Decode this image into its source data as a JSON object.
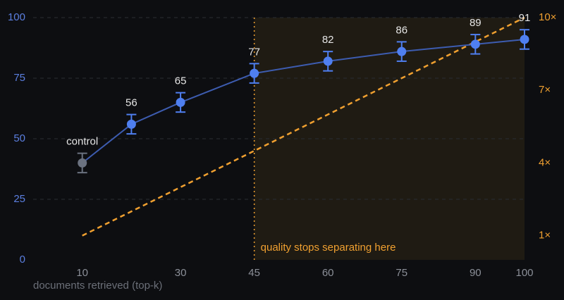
{
  "chart_data": {
    "type": "line",
    "x_label": "documents retrieved (top-k)",
    "xlim": [
      0,
      100
    ],
    "xticks": [
      10,
      30,
      45,
      60,
      75,
      90,
      100
    ],
    "ylim": [
      0,
      100
    ],
    "yticks": [
      0,
      25,
      50,
      75,
      100
    ],
    "y2lim": [
      0,
      10
    ],
    "y2ticks": [
      {
        "value": 1,
        "label": "1×"
      },
      {
        "value": 4,
        "label": "4×"
      },
      {
        "value": 7,
        "label": "7×"
      },
      {
        "value": 10,
        "label": "10×"
      }
    ],
    "grid": true,
    "control": {
      "label": "control",
      "x": 10,
      "value": 40,
      "error": 4,
      "color": "#6b7280"
    },
    "series": [
      {
        "color": "#4f7ff0",
        "x": [
          20,
          30,
          45,
          60,
          75,
          90,
          100
        ],
        "values": [
          56,
          65,
          77,
          82,
          86,
          89,
          91
        ],
        "errors": [
          4,
          4,
          4,
          4,
          4,
          4,
          4
        ]
      },
      {
        "color": "#f0a030",
        "axis": "y2",
        "x": [
          10,
          100
        ],
        "values": [
          1,
          10
        ]
      }
    ],
    "highlight": {
      "from": 45,
      "to": 100,
      "text": "quality stops separating here",
      "color": "#f0a030"
    }
  }
}
